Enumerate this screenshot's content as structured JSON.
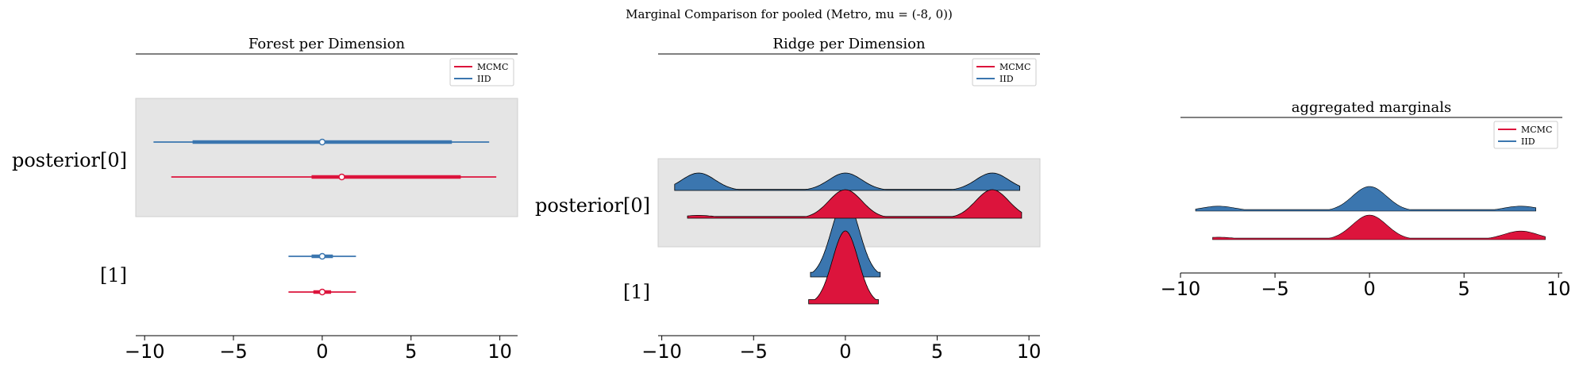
{
  "suptitle": "Marginal Comparison for pooled (Metro, mu = (-8, 0))",
  "colors": {
    "mcmc": "#dc143c",
    "iid": "#3b76af",
    "shade": "#e5e5e5"
  },
  "legend": {
    "mcmc": "MCMC",
    "iid": "IID"
  },
  "chart_data": [
    {
      "type": "forest",
      "title": "Forest per Dimension",
      "xlim": [
        -10.5,
        11
      ],
      "xticks": [
        -10,
        -5,
        0,
        5,
        10
      ],
      "xtick_labels": [
        "−10",
        "−5",
        "0",
        "5",
        "10"
      ],
      "y_labels": [
        "posterior[0]",
        "[1]"
      ],
      "series": [
        {
          "name": "MCMC",
          "rows": [
            {
              "label": "posterior[0]",
              "median": 1.1,
              "q25": -0.6,
              "q75": 7.8,
              "low": -8.5,
              "high": 9.8
            },
            {
              "label": "[1]",
              "median": 0.0,
              "q25": -0.5,
              "q75": 0.5,
              "low": -1.9,
              "high": 1.9
            }
          ]
        },
        {
          "name": "IID",
          "rows": [
            {
              "label": "posterior[0]",
              "median": 0.0,
              "q25": -7.3,
              "q75": 7.3,
              "low": -9.5,
              "high": 9.4
            },
            {
              "label": "[1]",
              "median": 0.0,
              "q25": -0.6,
              "q75": 0.6,
              "low": -1.9,
              "high": 1.9
            }
          ]
        }
      ]
    },
    {
      "type": "ridgeline",
      "title": "Ridge per Dimension",
      "xlim": [
        -10.2,
        10.6
      ],
      "xticks": [
        -10,
        -5,
        0,
        5,
        10
      ],
      "xtick_labels": [
        "−10",
        "−5",
        "0",
        "5",
        "10"
      ],
      "y_labels": [
        "posterior[0]",
        "[1]"
      ],
      "series": [
        {
          "name": "IID",
          "rows": [
            {
              "label": "posterior[0]",
              "range": [
                -9.3,
                9.5
              ],
              "modes": [
                [
                  -8,
                  1,
                  0.9
                ],
                [
                  0,
                  1,
                  0.9
                ],
                [
                  8,
                  1,
                  0.9
                ]
              ]
            },
            {
              "label": "[1]",
              "range": [
                -1.9,
                1.9
              ],
              "modes": [
                [
                  0,
                  1,
                  0.75
                ]
              ]
            }
          ]
        },
        {
          "name": "MCMC",
          "rows": [
            {
              "label": "posterior[0]",
              "range": [
                -8.6,
                9.6
              ],
              "modes": [
                [
                  -8,
                  0.1,
                  0.9
                ],
                [
                  0,
                  1,
                  0.9
                ],
                [
                  8,
                  1,
                  0.9
                ]
              ]
            },
            {
              "label": "[1]",
              "range": [
                -2.0,
                1.8
              ],
              "modes": [
                [
                  0,
                  1,
                  0.7
                ]
              ]
            }
          ]
        }
      ]
    },
    {
      "type": "area",
      "title": "aggregated marginals",
      "xlim": [
        -10,
        10.2
      ],
      "xticks": [
        -10,
        -5,
        0,
        5,
        10
      ],
      "xtick_labels": [
        "−10",
        "−5",
        "0",
        "5",
        "10"
      ],
      "series": [
        {
          "name": "IID",
          "range": [
            -9.2,
            8.8
          ],
          "modes": [
            [
              -8,
              0.2,
              0.9
            ],
            [
              0,
              1,
              0.9
            ],
            [
              8,
              0.2,
              0.9
            ]
          ]
        },
        {
          "name": "MCMC",
          "range": [
            -8.3,
            9.3
          ],
          "modes": [
            [
              -8,
              0.1,
              0.9
            ],
            [
              0,
              1,
              0.9
            ],
            [
              8,
              0.35,
              0.9
            ]
          ]
        }
      ]
    }
  ]
}
